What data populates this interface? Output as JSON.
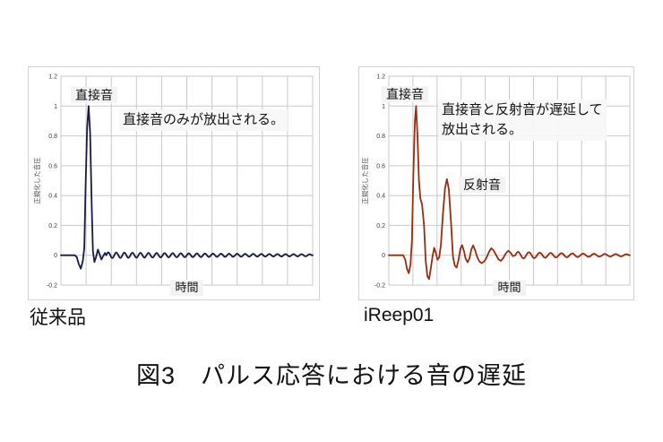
{
  "caption": "図3　パルス応答における音の遅延",
  "charts": [
    {
      "product_label": "従来品",
      "annotations": {
        "direct": "直接音",
        "note_lines": [
          "直接音のみが放出される。"
        ]
      }
    },
    {
      "product_label": "iReep01",
      "annotations": {
        "direct": "直接音",
        "reflect": "反射音",
        "note_lines": [
          "直接音と反射音が遅延して",
          "放出される。"
        ]
      }
    }
  ],
  "chart_data": [
    {
      "type": "line",
      "xlabel": "時間",
      "ylabel": "正規化した音圧",
      "ylim": [
        -0.2,
        1.2
      ],
      "yticks": [
        1.2,
        1,
        0.8,
        0.6,
        0.4,
        0.2,
        0,
        -0.2
      ],
      "ytick_labels": [
        "1.2",
        "1",
        "0.8",
        "0.6",
        "0.4",
        "0.2",
        "0",
        "-0.2"
      ],
      "x_divisions": 10,
      "grid": true,
      "grid_color": "#c9c9c9",
      "line_color": "#171b42",
      "points": [
        [
          0,
          0
        ],
        [
          0.055,
          0
        ],
        [
          0.063,
          -0.012
        ],
        [
          0.071,
          -0.06
        ],
        [
          0.079,
          -0.09
        ],
        [
          0.087,
          -0.04
        ],
        [
          0.093,
          0.05
        ],
        [
          0.098,
          0.45
        ],
        [
          0.104,
          0.85
        ],
        [
          0.11,
          1.0
        ],
        [
          0.116,
          0.82
        ],
        [
          0.122,
          0.35
        ],
        [
          0.127,
          0.03
        ],
        [
          0.133,
          -0.045
        ],
        [
          0.14,
          -0.01
        ],
        [
          0.147,
          0.038
        ],
        [
          0.154,
          0.005
        ],
        [
          0.161,
          -0.028
        ],
        [
          0.168,
          -0.005
        ],
        [
          0.175,
          0.015
        ],
        [
          0.18,
          0
        ]
      ],
      "ripple": {
        "from": 0.18,
        "to": 1.0,
        "period": 0.032,
        "amp_from": 0.02,
        "amp_to": 0.007
      }
    },
    {
      "type": "line",
      "xlabel": "時間",
      "ylabel": "正規化した音圧",
      "ylim": [
        -0.2,
        1.2
      ],
      "yticks": [
        1.2,
        1,
        0.8,
        0.6,
        0.4,
        0.2,
        0,
        -0.2
      ],
      "ytick_labels": [
        "1.2",
        "1",
        "0.8",
        "0.6",
        "0.4",
        "0.2",
        "0",
        "-0.2"
      ],
      "x_divisions": 10,
      "grid": true,
      "grid_color": "#c9c9c9",
      "line_color": "#9a2c0d",
      "points": [
        [
          0,
          0
        ],
        [
          0.06,
          0
        ],
        [
          0.068,
          -0.03
        ],
        [
          0.076,
          -0.095
        ],
        [
          0.083,
          -0.12
        ],
        [
          0.09,
          -0.06
        ],
        [
          0.096,
          0.1
        ],
        [
          0.102,
          0.55
        ],
        [
          0.108,
          0.9
        ],
        [
          0.113,
          1.0
        ],
        [
          0.119,
          0.8
        ],
        [
          0.125,
          0.5
        ],
        [
          0.131,
          0.38
        ],
        [
          0.138,
          0.34
        ],
        [
          0.146,
          0.2
        ],
        [
          0.153,
          -0.04
        ],
        [
          0.16,
          -0.14
        ],
        [
          0.167,
          -0.16
        ],
        [
          0.174,
          -0.09
        ],
        [
          0.181,
          -0.01
        ],
        [
          0.188,
          0.05
        ],
        [
          0.195,
          0.015
        ],
        [
          0.202,
          -0.03
        ],
        [
          0.209,
          -0.015
        ],
        [
          0.216,
          0.07
        ],
        [
          0.224,
          0.27
        ],
        [
          0.233,
          0.45
        ],
        [
          0.241,
          0.51
        ],
        [
          0.249,
          0.44
        ],
        [
          0.258,
          0.22
        ],
        [
          0.266,
          -0.01
        ],
        [
          0.274,
          -0.07
        ],
        [
          0.281,
          -0.082
        ],
        [
          0.289,
          -0.035
        ],
        [
          0.297,
          0.045
        ],
        [
          0.304,
          0.068
        ],
        [
          0.312,
          0.028
        ],
        [
          0.319,
          -0.025
        ],
        [
          0.327,
          -0.047
        ],
        [
          0.335,
          -0.02
        ],
        [
          0.342,
          0.038
        ],
        [
          0.35,
          0.066
        ],
        [
          0.358,
          0.034
        ],
        [
          0.366,
          -0.01
        ],
        [
          0.375,
          -0.04
        ],
        [
          0.385,
          -0.053
        ],
        [
          0.395,
          -0.042
        ],
        [
          0.405,
          -0.018
        ],
        [
          0.415,
          0.02
        ],
        [
          0.425,
          0.047
        ],
        [
          0.435,
          0.032
        ],
        [
          0.445,
          0.002
        ],
        [
          0.455,
          -0.028
        ],
        [
          0.465,
          -0.038
        ],
        [
          0.475,
          -0.018
        ],
        [
          0.485,
          0.012
        ],
        [
          0.495,
          0.03
        ],
        [
          0.505,
          0.018
        ],
        [
          0.515,
          -0.006
        ],
        [
          0.525,
          0
        ]
      ],
      "ripple": {
        "from": 0.525,
        "to": 1.0,
        "period": 0.045,
        "amp_from": 0.024,
        "amp_to": 0.007
      }
    }
  ]
}
